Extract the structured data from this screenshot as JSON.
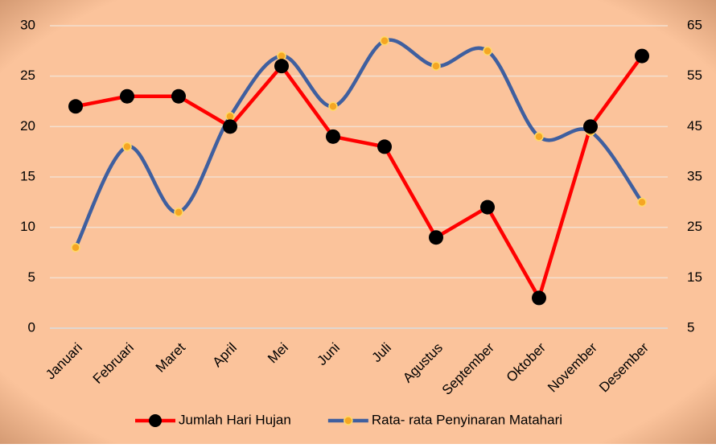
{
  "chart_data": {
    "type": "line",
    "categories": [
      "Januari",
      "Februari",
      "Maret",
      "April",
      "Mei",
      "Juni",
      "Juli",
      "Agustus",
      "September",
      "Oktober",
      "November",
      "Desember"
    ],
    "series": [
      {
        "name": "Jumlah Hari Hujan",
        "color": "#ff0000",
        "marker_color": "#000000",
        "values": [
          22,
          23,
          23,
          20,
          26,
          19,
          18,
          9,
          12,
          3,
          20,
          27
        ]
      },
      {
        "name": "Rata- rata Penyinaran Matahari",
        "color": "#3f5f9f",
        "marker_color": "#f5a623",
        "axis": "y2",
        "smooth": true,
        "values": [
          21,
          41,
          28,
          47,
          59,
          49,
          62,
          57,
          60,
          43,
          44,
          30
        ]
      }
    ],
    "ylim": [
      0,
      30
    ],
    "yticks": [
      0,
      5,
      10,
      15,
      20,
      25,
      30
    ],
    "y2lim": [
      5,
      65
    ],
    "y2ticks": [
      5,
      15,
      25,
      35,
      45,
      55,
      65
    ],
    "grid": true,
    "legend": "bottom"
  }
}
